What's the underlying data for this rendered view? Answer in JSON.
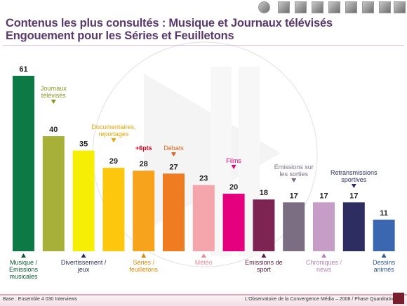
{
  "title_line1": "Contenus les plus consultés : Musique et Journaux télévisés",
  "title_line2": "Engouement pour les Séries et Feuilletons",
  "footer": {
    "left": "Base : Ensemble 4 030 Interviews",
    "right": "L'Observatoire de la Convergence Média – 2008 / Phase Quantitative"
  },
  "chart_data": {
    "type": "bar",
    "categories": [
      "Musique / Emissions musicales",
      "Journaux télévisés",
      "Divertissement / jeux",
      "Documentaires, reportages",
      "Séries / feuilletons",
      "Débats",
      "Météo",
      "Films",
      "Emissions de sport",
      "Emissions sur les sorties",
      "Chroniques / news",
      "Retransmissions sportives",
      "Dessins animés"
    ],
    "values": [
      61,
      40,
      35,
      29,
      28,
      27,
      23,
      20,
      18,
      17,
      17,
      17,
      11
    ],
    "colors": [
      "#0d7a46",
      "#a7b13a",
      "#f7ee06",
      "#fcc70c",
      "#f7a31c",
      "#f07c21",
      "#f5a6ad",
      "#e5007e",
      "#7d2453",
      "#7b6e83",
      "#c59dc7",
      "#2d2d62",
      "#3b66b0"
    ],
    "annotation": "+6pts",
    "ylim": [
      0,
      65
    ],
    "grid": false,
    "legend": "none"
  }
}
